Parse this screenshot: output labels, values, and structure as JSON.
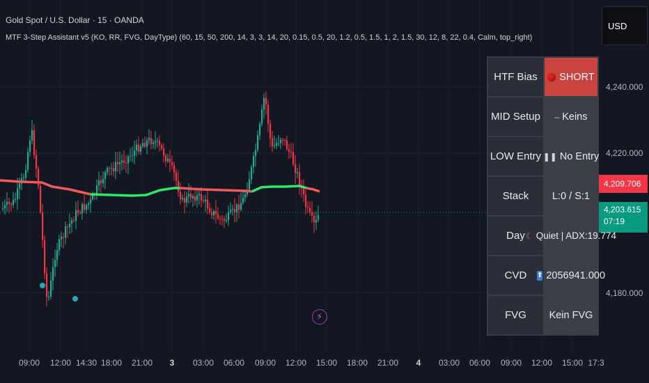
{
  "header": {
    "title": "Gold Spot / U.S. Dollar · 15 · OANDA",
    "indicator": "MTF 3-Step Assistant v5 (KO, RR, FVG, DayType) (60, 15, 50, 200, 14, 3, 3, 14, 20, 0.15, 0.5, 20, 1.2, 0.5, 1.5, 1, 2, 1.5, 30, 12, 8, 22, 0.4, Calm, top_right)"
  },
  "currency_button": "USD",
  "price_axis": {
    "ticks": [
      "4,240.000",
      "4,220.000",
      "4,180.000"
    ],
    "red_label": "4,209.706",
    "green_label": "4,203.615",
    "countdown": "07:19"
  },
  "time_axis": {
    "ticks": [
      "09:00",
      "12:00",
      "14:30",
      "18:00",
      "21:00",
      "3",
      "03:00",
      "06:00",
      "09:00",
      "12:00",
      "15:00",
      "18:00",
      "21:00",
      "4",
      "03:00",
      "06:00",
      "09:00",
      "12:00",
      "15:00",
      "17:3"
    ]
  },
  "dashboard": {
    "rows": [
      {
        "label": "HTF Bias",
        "value": "SHORT",
        "icon": "red-circle-icon"
      },
      {
        "label": "MID Setup",
        "value": "Keins",
        "icon": "dash-icon"
      },
      {
        "label": "LOW Entry",
        "value": "No Entry",
        "icon": "pause-icon"
      },
      {
        "label": "Stack",
        "value": "L:0 / S:1",
        "icon": ""
      },
      {
        "label": "Day",
        "value": "Quiet | ADX:19.774",
        "icon": "moon-icon"
      },
      {
        "label": "CVD",
        "value": "2056941.000",
        "icon": "up-arrow-icon"
      },
      {
        "label": "FVG",
        "value": "Kein FVG",
        "icon": ""
      }
    ]
  },
  "colors": {
    "background": "#131722",
    "bull": "#22ab94",
    "bear": "#f23645",
    "ma_up": "#2ee86e",
    "ma_down": "#f05a5e",
    "short_cell": "#c9433f"
  }
}
